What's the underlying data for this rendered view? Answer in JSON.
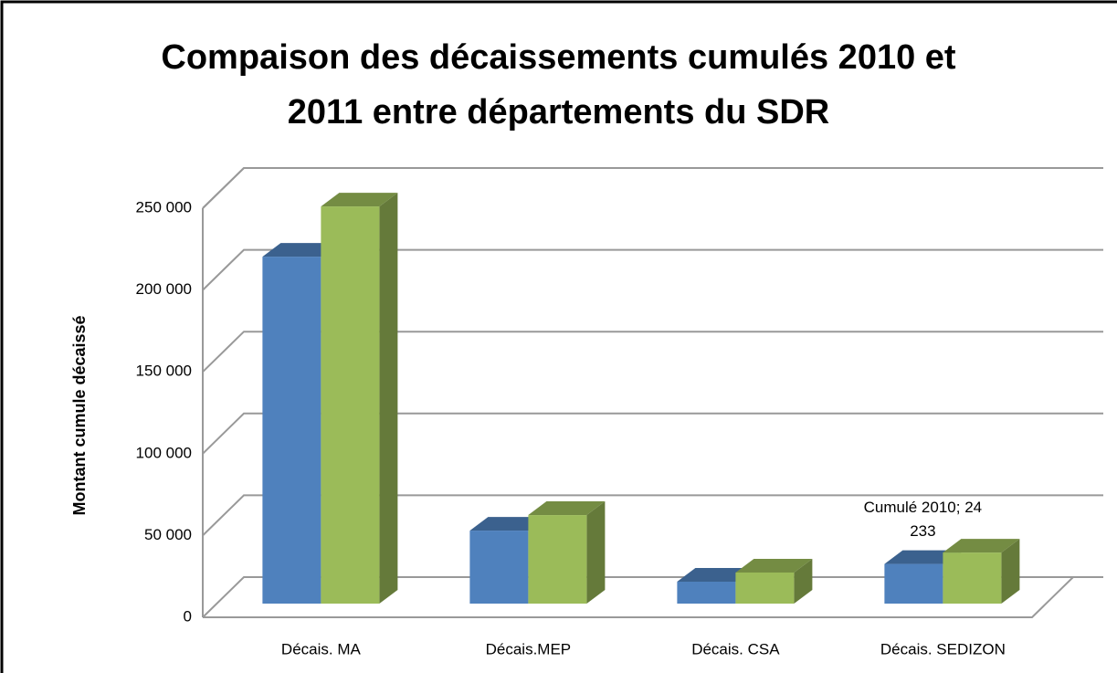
{
  "chart_data": {
    "type": "bar3d",
    "title": [
      "Compaison des décaissements cumulés 2010 et",
      "2011 entre départements du SDR"
    ],
    "y_label": "Montant cumule décaissé",
    "categories": [
      "Décais.  MA",
      "Décais.MEP",
      "Décais. CSA",
      "Décais. SEDIZON"
    ],
    "series": [
      {
        "color": "#4f81bd",
        "values": [
          212000,
          44600,
          13400,
          24233
        ],
        "value_labels": [
          null,
          null,
          null,
          "Cumulé 2010; 24 233"
        ]
      },
      {
        "color": "#9bbb59",
        "values": [
          242700,
          54100,
          19000,
          31200
        ]
      }
    ],
    "ylim": [
      0,
      250000
    ],
    "yticks": [
      0,
      {
        "value": 50000,
        "label": "50 000"
      },
      {
        "value": 100000,
        "label": "100 000"
      },
      {
        "value": 150000,
        "label": "150 000"
      },
      {
        "value": 200000,
        "label": "200 000"
      },
      {
        "value": 250000,
        "label": "250 000"
      }
    ],
    "grid": true
  }
}
